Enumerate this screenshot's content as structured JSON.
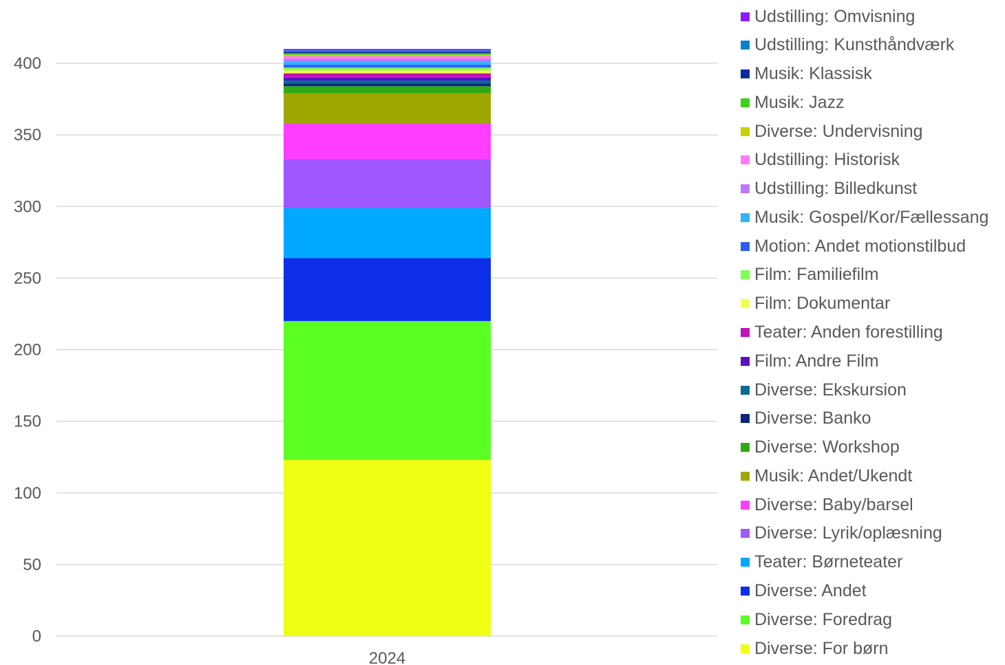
{
  "chart_data": {
    "type": "bar",
    "stacked": true,
    "categories": [
      "2024"
    ],
    "ylim": [
      0,
      400
    ],
    "yticks": [
      0,
      50,
      100,
      150,
      200,
      250,
      300,
      350,
      400
    ],
    "grid": true,
    "legend_position": "right",
    "series": [
      {
        "name": "Diverse: For børn",
        "values": [
          123
        ],
        "color": "#f0ff14"
      },
      {
        "name": "Diverse: Foredrag",
        "values": [
          97
        ],
        "color": "#5cff24"
      },
      {
        "name": "Diverse: Andet",
        "values": [
          44
        ],
        "color": "#0b2ee6"
      },
      {
        "name": "Teater: Børneteater",
        "values": [
          35
        ],
        "color": "#00a8ff"
      },
      {
        "name": "Diverse: Lyrik/oplæsning",
        "values": [
          34
        ],
        "color": "#a057ff"
      },
      {
        "name": "Diverse: Baby/barsel",
        "values": [
          25
        ],
        "color": "#ff3dff"
      },
      {
        "name": "Musik: Andet/Ukendt",
        "values": [
          21
        ],
        "color": "#9ea600"
      },
      {
        "name": "Diverse: Workshop",
        "values": [
          5
        ],
        "color": "#2fa812"
      },
      {
        "name": "Diverse: Banko",
        "values": [
          2
        ],
        "color": "#0b2480"
      },
      {
        "name": "Diverse: Ekskursion",
        "values": [
          2
        ],
        "color": "#0a6b93"
      },
      {
        "name": "Film: Andre Film",
        "values": [
          2
        ],
        "color": "#5a0fc4"
      },
      {
        "name": "Teater: Anden forestilling",
        "values": [
          3
        ],
        "color": "#c012b6"
      },
      {
        "name": "Film: Dokumentar",
        "values": [
          2
        ],
        "color": "#f5ff50"
      },
      {
        "name": "Film: Familiefilm",
        "values": [
          2
        ],
        "color": "#7dff50"
      },
      {
        "name": "Motion: Andet motionstilbud",
        "values": [
          2
        ],
        "color": "#2e5ef0"
      },
      {
        "name": "Musik: Gospel/Kor/Fællessang",
        "values": [
          2
        ],
        "color": "#32b4ff"
      },
      {
        "name": "Udstilling: Billedkunst",
        "values": [
          2
        ],
        "color": "#b878ff"
      },
      {
        "name": "Udstilling: Historisk",
        "values": [
          2
        ],
        "color": "#ff78ff"
      },
      {
        "name": "Diverse: Undervisning",
        "values": [
          1
        ],
        "color": "#c8d200"
      },
      {
        "name": "Musik: Jazz",
        "values": [
          1
        ],
        "color": "#3cd21a"
      },
      {
        "name": "Musik: Klassisk",
        "values": [
          1
        ],
        "color": "#0a2aa0"
      },
      {
        "name": "Udstilling: Kunsthåndværk",
        "values": [
          1
        ],
        "color": "#0a82c8"
      },
      {
        "name": "Udstilling: Omvisning",
        "values": [
          1
        ],
        "color": "#8a1aff"
      }
    ]
  }
}
